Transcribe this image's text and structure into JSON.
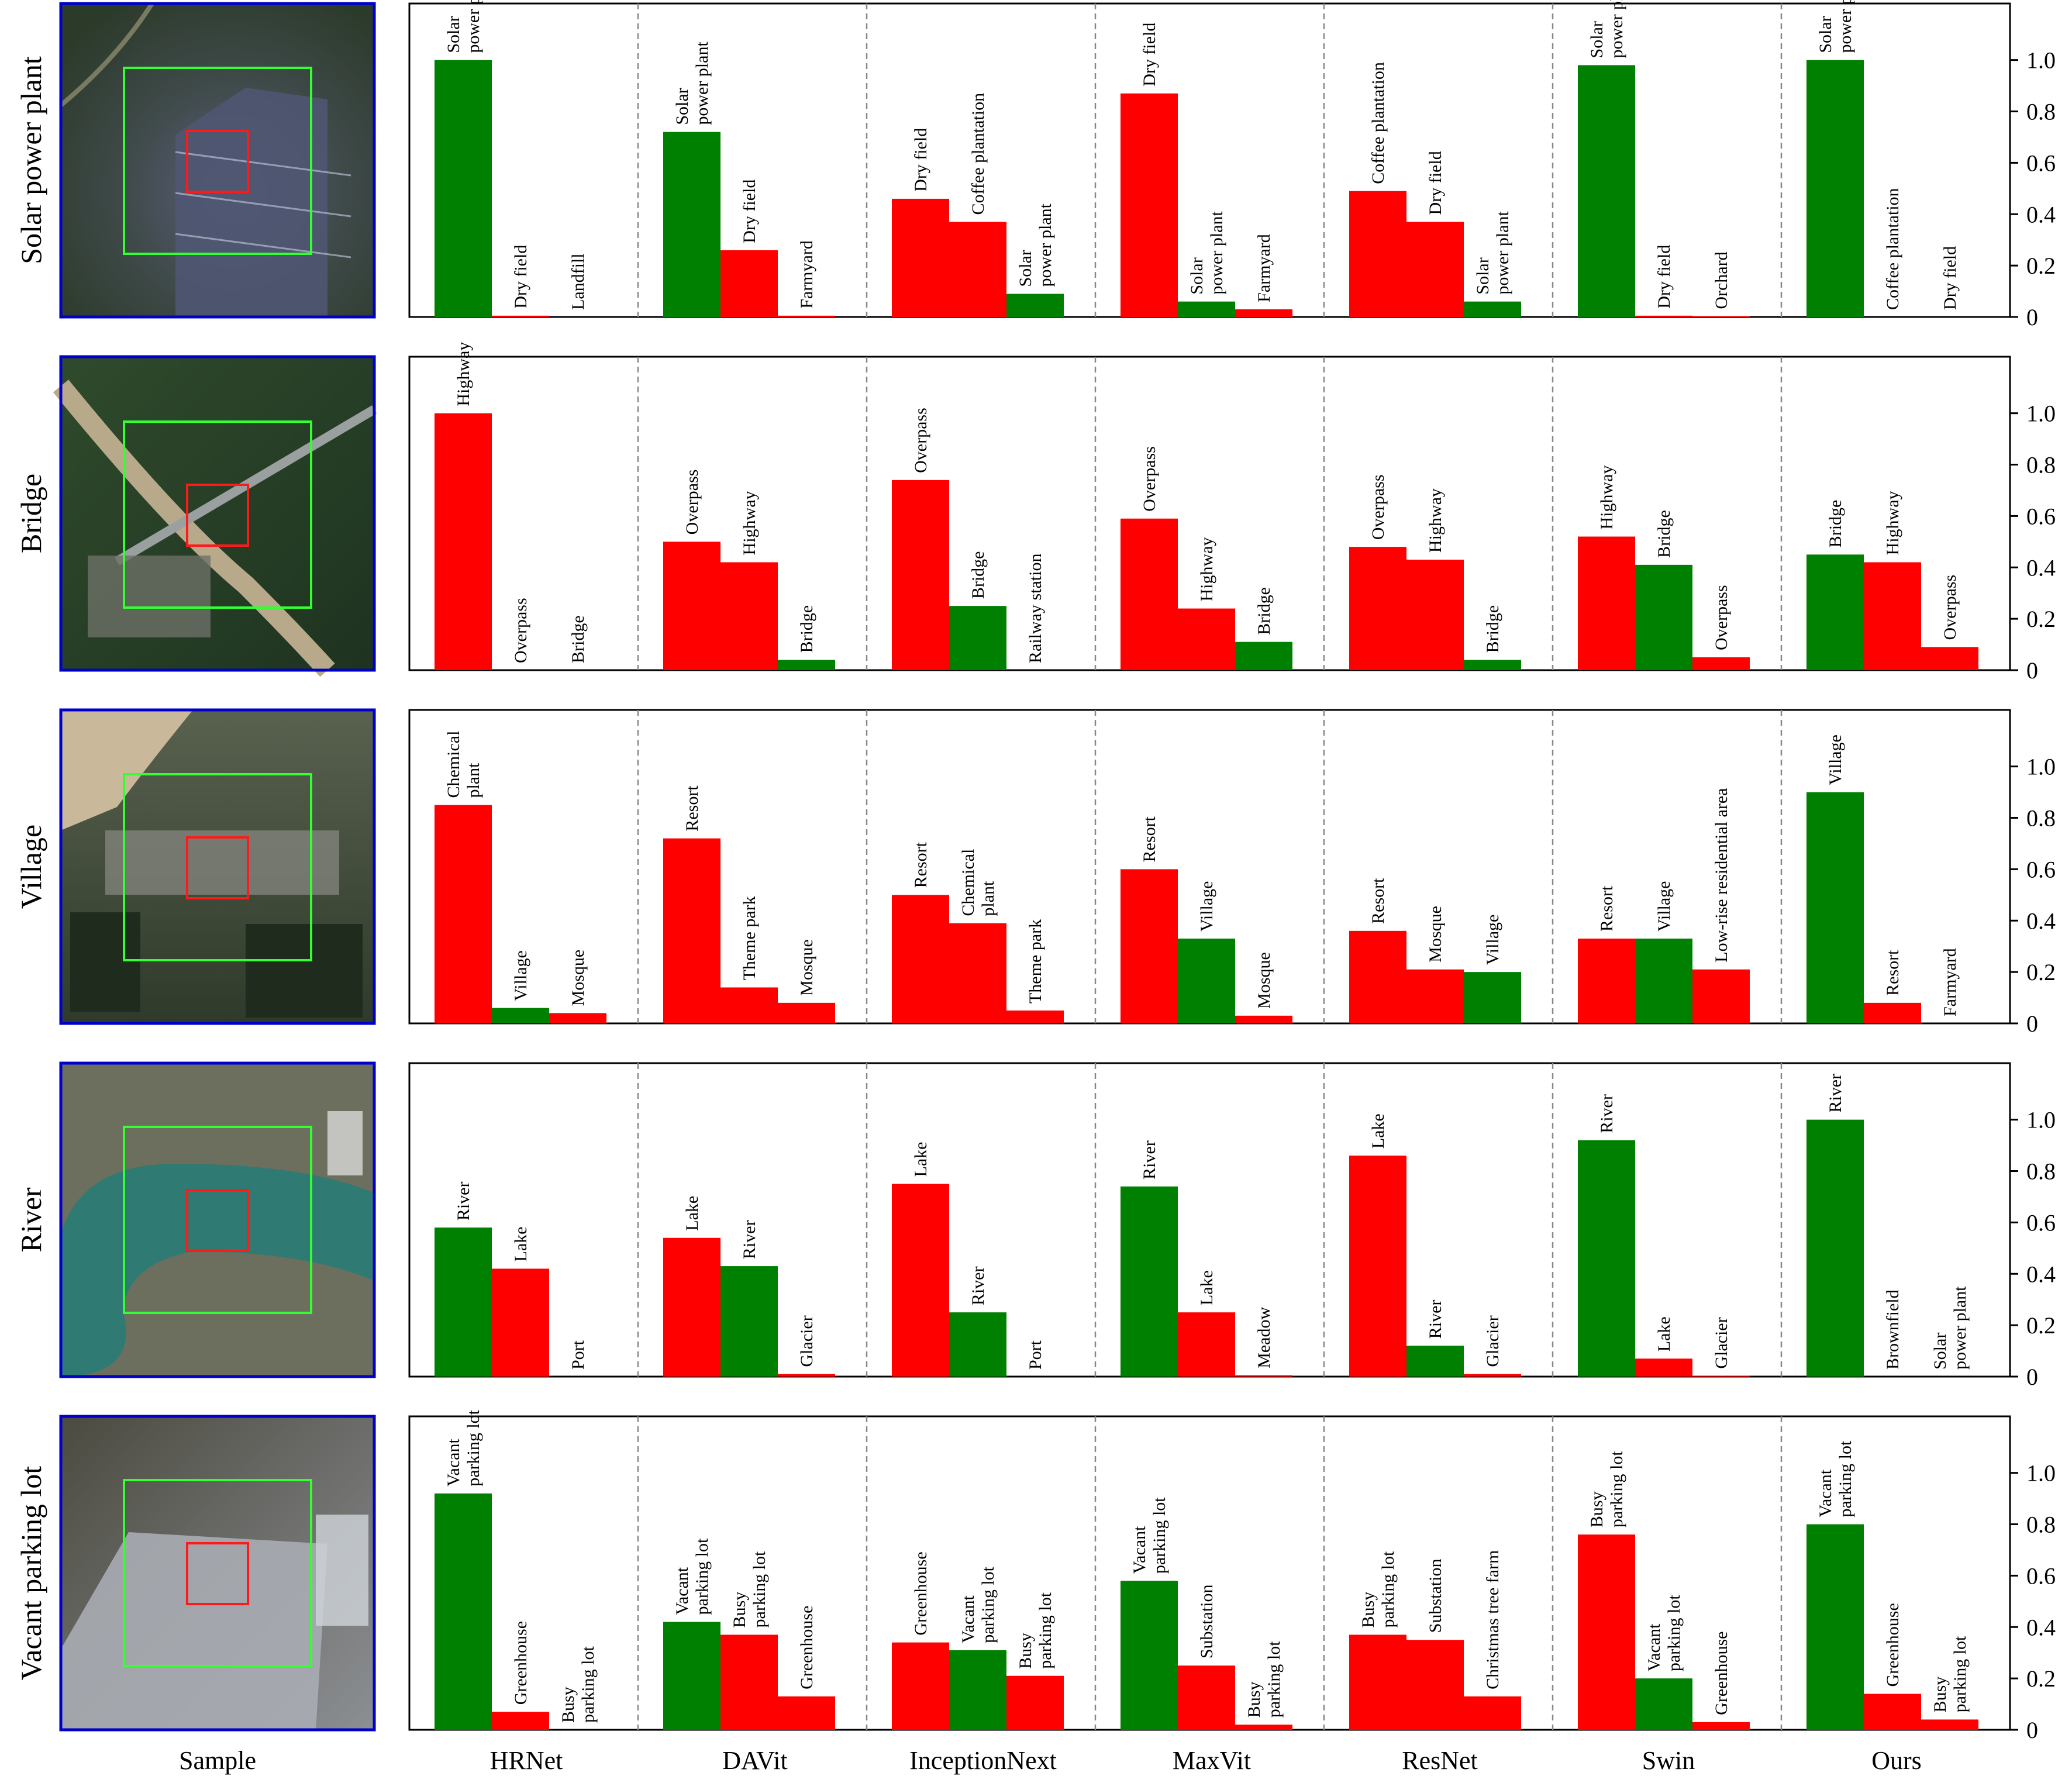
{
  "figure": {
    "sample_label": "Sample",
    "models": [
      "HRNet",
      "DAVit",
      "InceptionNext",
      "MaxVit",
      "ResNet",
      "Swin",
      "Ours"
    ],
    "y_ticks": [
      "0",
      "0.2",
      "0.4",
      "0.6",
      "0.8",
      "1.0"
    ],
    "colors": {
      "correct": "#008000",
      "incorrect": "#ff0000",
      "frame": "#0000cc",
      "crop_green": "#33ff33",
      "crop_red": "#ff1a1a"
    }
  },
  "chart_data": {
    "type": "bar",
    "ylim": [
      0,
      1.22
    ],
    "rows": [
      {
        "label": "Solar power plant",
        "groups": [
          {
            "model": "HRNet",
            "bars": [
              {
                "label": "Solar\npower plant",
                "value": 1.0,
                "correct": true
              },
              {
                "label": "Dry field",
                "value": 0.005,
                "correct": false
              },
              {
                "label": "Landfill",
                "value": 0.0,
                "correct": false
              }
            ]
          },
          {
            "model": "DAVit",
            "bars": [
              {
                "label": "Solar\npower plant",
                "value": 0.72,
                "correct": true
              },
              {
                "label": "Dry field",
                "value": 0.26,
                "correct": false
              },
              {
                "label": "Farmyard",
                "value": 0.005,
                "correct": false
              }
            ]
          },
          {
            "model": "InceptionNext",
            "bars": [
              {
                "label": "Dry field",
                "value": 0.46,
                "correct": false
              },
              {
                "label": "Coffee plantation",
                "value": 0.37,
                "correct": false
              },
              {
                "label": "Solar\npower plant",
                "value": 0.09,
                "correct": true
              }
            ]
          },
          {
            "model": "MaxVit",
            "bars": [
              {
                "label": "Dry field",
                "value": 0.87,
                "correct": false
              },
              {
                "label": "Solar\npower plant",
                "value": 0.06,
                "correct": true
              },
              {
                "label": "Farmyard",
                "value": 0.03,
                "correct": false
              }
            ]
          },
          {
            "model": "ResNet",
            "bars": [
              {
                "label": "Coffee plantation",
                "value": 0.49,
                "correct": false
              },
              {
                "label": "Dry field",
                "value": 0.37,
                "correct": false
              },
              {
                "label": "Solar\npower plant",
                "value": 0.06,
                "correct": true
              }
            ]
          },
          {
            "model": "Swin",
            "bars": [
              {
                "label": "Solar\npower plant",
                "value": 0.98,
                "correct": true
              },
              {
                "label": "Dry field",
                "value": 0.005,
                "correct": false
              },
              {
                "label": "Orchard",
                "value": 0.003,
                "correct": false
              }
            ]
          },
          {
            "model": "Ours",
            "bars": [
              {
                "label": "Solar\npower plant",
                "value": 1.0,
                "correct": true
              },
              {
                "label": "Coffee plantation",
                "value": 0.0,
                "correct": false
              },
              {
                "label": "Dry field",
                "value": 0.0,
                "correct": false
              }
            ]
          }
        ]
      },
      {
        "label": "Bridge",
        "groups": [
          {
            "model": "HRNet",
            "bars": [
              {
                "label": "Highway",
                "value": 1.0,
                "correct": false
              },
              {
                "label": "Overpass",
                "value": 0.0,
                "correct": false
              },
              {
                "label": "Bridge",
                "value": 0.0,
                "correct": true
              }
            ]
          },
          {
            "model": "DAVit",
            "bars": [
              {
                "label": "Overpass",
                "value": 0.5,
                "correct": false
              },
              {
                "label": "Highway",
                "value": 0.42,
                "correct": false
              },
              {
                "label": "Bridge",
                "value": 0.04,
                "correct": true
              }
            ]
          },
          {
            "model": "InceptionNext",
            "bars": [
              {
                "label": "Overpass",
                "value": 0.74,
                "correct": false
              },
              {
                "label": "Bridge",
                "value": 0.25,
                "correct": true
              },
              {
                "label": "Railway station",
                "value": 0.0,
                "correct": false
              }
            ]
          },
          {
            "model": "MaxVit",
            "bars": [
              {
                "label": "Overpass",
                "value": 0.59,
                "correct": false
              },
              {
                "label": "Highway",
                "value": 0.24,
                "correct": false
              },
              {
                "label": "Bridge",
                "value": 0.11,
                "correct": true
              }
            ]
          },
          {
            "model": "ResNet",
            "bars": [
              {
                "label": "Overpass",
                "value": 0.48,
                "correct": false
              },
              {
                "label": "Highway",
                "value": 0.43,
                "correct": false
              },
              {
                "label": "Bridge",
                "value": 0.04,
                "correct": true
              }
            ]
          },
          {
            "model": "Swin",
            "bars": [
              {
                "label": "Highway",
                "value": 0.52,
                "correct": false
              },
              {
                "label": "Bridge",
                "value": 0.41,
                "correct": true
              },
              {
                "label": "Overpass",
                "value": 0.05,
                "correct": false
              }
            ]
          },
          {
            "model": "Ours",
            "bars": [
              {
                "label": "Bridge",
                "value": 0.45,
                "correct": true
              },
              {
                "label": "Highway",
                "value": 0.42,
                "correct": false
              },
              {
                "label": "Overpass",
                "value": 0.09,
                "correct": false
              }
            ]
          }
        ]
      },
      {
        "label": "Village",
        "groups": [
          {
            "model": "HRNet",
            "bars": [
              {
                "label": "Chemical\nplant",
                "value": 0.85,
                "correct": false
              },
              {
                "label": "Village",
                "value": 0.06,
                "correct": true
              },
              {
                "label": "Mosque",
                "value": 0.04,
                "correct": false
              }
            ]
          },
          {
            "model": "DAVit",
            "bars": [
              {
                "label": "Resort",
                "value": 0.72,
                "correct": false
              },
              {
                "label": "Theme park",
                "value": 0.14,
                "correct": false
              },
              {
                "label": "Mosque",
                "value": 0.08,
                "correct": false
              }
            ]
          },
          {
            "model": "InceptionNext",
            "bars": [
              {
                "label": "Resort",
                "value": 0.5,
                "correct": false
              },
              {
                "label": "Chemical\nplant",
                "value": 0.39,
                "correct": false
              },
              {
                "label": "Theme park",
                "value": 0.05,
                "correct": false
              }
            ]
          },
          {
            "model": "MaxVit",
            "bars": [
              {
                "label": "Resort",
                "value": 0.6,
                "correct": false
              },
              {
                "label": "Village",
                "value": 0.33,
                "correct": true
              },
              {
                "label": "Mosque",
                "value": 0.03,
                "correct": false
              }
            ]
          },
          {
            "model": "ResNet",
            "bars": [
              {
                "label": "Resort",
                "value": 0.36,
                "correct": false
              },
              {
                "label": "Mosque",
                "value": 0.21,
                "correct": false
              },
              {
                "label": "Village",
                "value": 0.2,
                "correct": true
              }
            ]
          },
          {
            "model": "Swin",
            "bars": [
              {
                "label": "Resort",
                "value": 0.33,
                "correct": false
              },
              {
                "label": "Village",
                "value": 0.33,
                "correct": true
              },
              {
                "label": "Low-rise residential area",
                "value": 0.21,
                "correct": false
              }
            ]
          },
          {
            "model": "Ours",
            "bars": [
              {
                "label": "Village",
                "value": 0.9,
                "correct": true
              },
              {
                "label": "Resort",
                "value": 0.08,
                "correct": false
              },
              {
                "label": "Farmyard",
                "value": 0.0,
                "correct": false
              }
            ]
          }
        ]
      },
      {
        "label": "River",
        "groups": [
          {
            "model": "HRNet",
            "bars": [
              {
                "label": "River",
                "value": 0.58,
                "correct": true
              },
              {
                "label": "Lake",
                "value": 0.42,
                "correct": false
              },
              {
                "label": "Port",
                "value": 0.0,
                "correct": false
              }
            ]
          },
          {
            "model": "DAVit",
            "bars": [
              {
                "label": "Lake",
                "value": 0.54,
                "correct": false
              },
              {
                "label": "River",
                "value": 0.43,
                "correct": true
              },
              {
                "label": "Glacier",
                "value": 0.01,
                "correct": false
              }
            ]
          },
          {
            "model": "InceptionNext",
            "bars": [
              {
                "label": "Lake",
                "value": 0.75,
                "correct": false
              },
              {
                "label": "River",
                "value": 0.25,
                "correct": true
              },
              {
                "label": "Port",
                "value": 0.0,
                "correct": false
              }
            ]
          },
          {
            "model": "MaxVit",
            "bars": [
              {
                "label": "River",
                "value": 0.74,
                "correct": true
              },
              {
                "label": "Lake",
                "value": 0.25,
                "correct": false
              },
              {
                "label": "Meadow",
                "value": 0.005,
                "correct": false
              }
            ]
          },
          {
            "model": "ResNet",
            "bars": [
              {
                "label": "Lake",
                "value": 0.86,
                "correct": false
              },
              {
                "label": "River",
                "value": 0.12,
                "correct": true
              },
              {
                "label": "Glacier",
                "value": 0.01,
                "correct": false
              }
            ]
          },
          {
            "model": "Swin",
            "bars": [
              {
                "label": "River",
                "value": 0.92,
                "correct": true
              },
              {
                "label": "Lake",
                "value": 0.07,
                "correct": false
              },
              {
                "label": "Glacier",
                "value": 0.003,
                "correct": false
              }
            ]
          },
          {
            "model": "Ours",
            "bars": [
              {
                "label": "River",
                "value": 1.0,
                "correct": true
              },
              {
                "label": "Brownfield",
                "value": 0.0,
                "correct": false
              },
              {
                "label": "Solar\npower plant",
                "value": 0.0,
                "correct": false
              }
            ]
          }
        ]
      },
      {
        "label": "Vacant parking lot",
        "groups": [
          {
            "model": "HRNet",
            "bars": [
              {
                "label": "Vacant\nparking lot",
                "value": 0.92,
                "correct": true
              },
              {
                "label": "Greenhouse",
                "value": 0.07,
                "correct": false
              },
              {
                "label": "Busy\nparking lot",
                "value": 0.0,
                "correct": false
              }
            ]
          },
          {
            "model": "DAVit",
            "bars": [
              {
                "label": "Vacant\nparking lot",
                "value": 0.42,
                "correct": true
              },
              {
                "label": "Busy\nparking lot",
                "value": 0.37,
                "correct": false
              },
              {
                "label": "Greenhouse",
                "value": 0.13,
                "correct": false
              }
            ]
          },
          {
            "model": "InceptionNext",
            "bars": [
              {
                "label": "Greenhouse",
                "value": 0.34,
                "correct": false
              },
              {
                "label": "Vacant\nparking lot",
                "value": 0.31,
                "correct": true
              },
              {
                "label": "Busy\nparking lot",
                "value": 0.21,
                "correct": false
              }
            ]
          },
          {
            "model": "MaxVit",
            "bars": [
              {
                "label": "Vacant\nparking lot",
                "value": 0.58,
                "correct": true
              },
              {
                "label": "Substation",
                "value": 0.25,
                "correct": false
              },
              {
                "label": "Busy\nparking lot",
                "value": 0.02,
                "correct": false
              }
            ]
          },
          {
            "model": "ResNet",
            "bars": [
              {
                "label": "Busy\nparking lot",
                "value": 0.37,
                "correct": false
              },
              {
                "label": "Substation",
                "value": 0.35,
                "correct": false
              },
              {
                "label": "Christmas tree farm",
                "value": 0.13,
                "correct": false
              }
            ]
          },
          {
            "model": "Swin",
            "bars": [
              {
                "label": "Busy\nparking lot",
                "value": 0.76,
                "correct": false
              },
              {
                "label": "Vacant\nparking lot",
                "value": 0.2,
                "correct": true
              },
              {
                "label": "Greenhouse",
                "value": 0.03,
                "correct": false
              }
            ]
          },
          {
            "model": "Ours",
            "bars": [
              {
                "label": "Vacant\nparking lot",
                "value": 0.8,
                "correct": true
              },
              {
                "label": "Greenhouse",
                "value": 0.14,
                "correct": false
              },
              {
                "label": "Busy\nparking lot",
                "value": 0.04,
                "correct": false
              }
            ]
          }
        ]
      }
    ]
  }
}
